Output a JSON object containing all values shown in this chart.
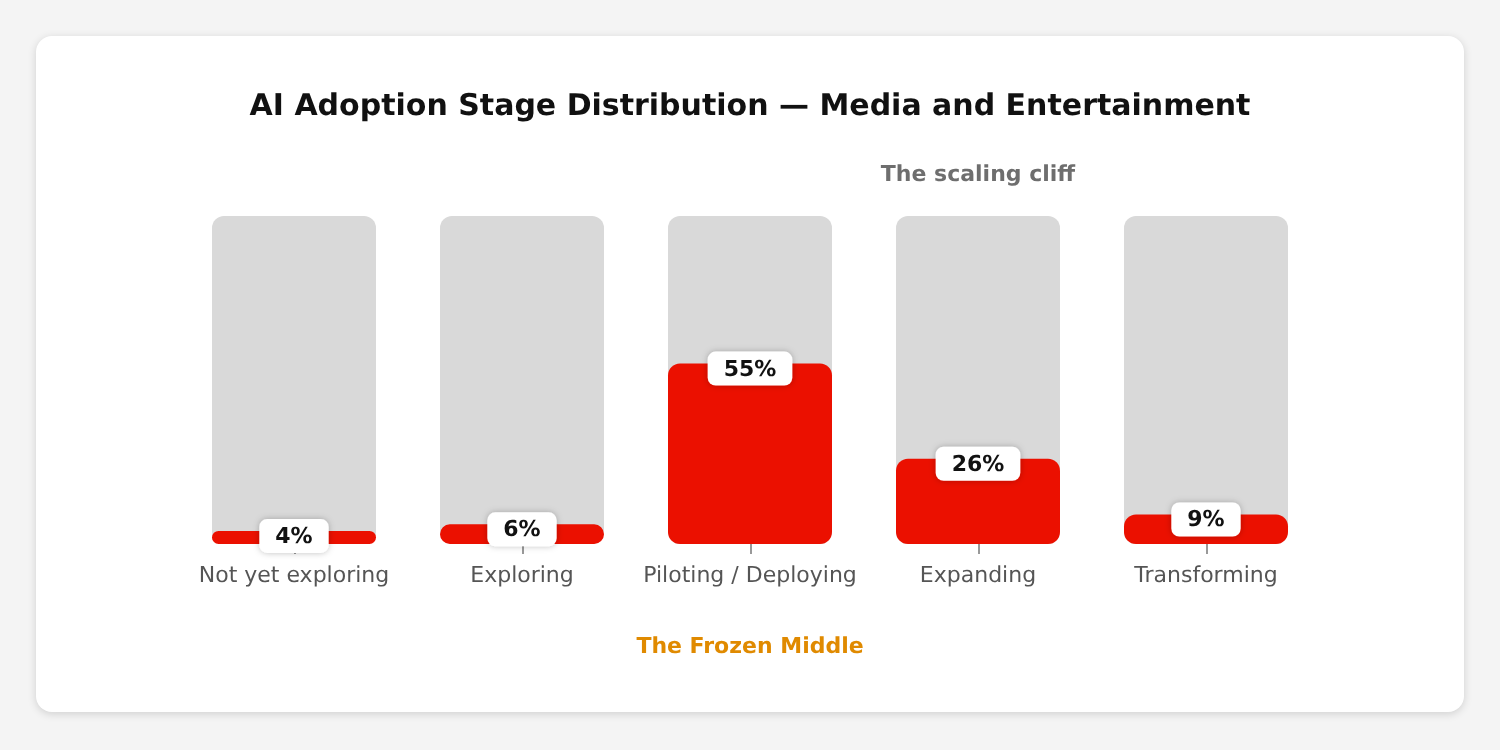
{
  "chart_data": {
    "type": "bar",
    "title": "AI Adoption Stage Distribution — Media and Entertainment",
    "categories": [
      "Not yet exploring",
      "Exploring",
      "Piloting / Deploying",
      "Expanding",
      "Transforming"
    ],
    "values": [
      4,
      6,
      55,
      26,
      9
    ],
    "value_labels": [
      "4%",
      "6%",
      "55%",
      "26%",
      "9%"
    ],
    "color": "#eb1000",
    "ylim": [
      0,
      100
    ],
    "tick_labels": "x",
    "annotations": [
      "The scaling cliff",
      "The Frozen Middle"
    ]
  }
}
